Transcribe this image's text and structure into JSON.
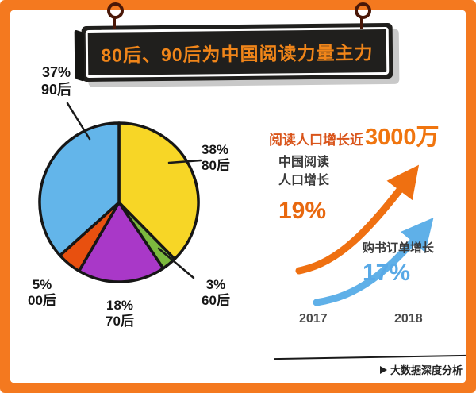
{
  "header": {
    "title": "80后、90后为中国阅读力量主力"
  },
  "frame": {
    "bg_color": "#f4791f",
    "sign_bg": "#201f1d",
    "sign_text_color": "#f08519"
  },
  "chart_data": [
    {
      "type": "pie",
      "title": "80后、90后为中国阅读力量主力",
      "slices": [
        {
          "label": "80后",
          "pct": 38,
          "pct_text": "38%",
          "color": "#f7d626"
        },
        {
          "label": "60后",
          "pct": 3,
          "pct_text": "3%",
          "color": "#7cb93e"
        },
        {
          "label": "70后",
          "pct": 18,
          "pct_text": "18%",
          "color": "#a938c8"
        },
        {
          "label": "00后",
          "pct": 5,
          "pct_text": "5%",
          "color": "#e8500f"
        },
        {
          "label": "90后",
          "pct": 37,
          "pct_text": "37%",
          "color": "#63b5ea"
        }
      ]
    },
    {
      "type": "line",
      "headline_prefix": "阅读人口增长近",
      "headline_value": "3000万",
      "x": [
        "2017",
        "2018"
      ],
      "series": [
        {
          "name": "中国阅读人口增长",
          "name_line1": "中国阅读",
          "name_line2": "人口增长",
          "value": "19%",
          "color": "#e8680f"
        },
        {
          "name": "购书订单增长",
          "value": "17%",
          "color": "#58a9e6"
        }
      ]
    }
  ],
  "footer": {
    "watermark": "大数据深度分析"
  }
}
